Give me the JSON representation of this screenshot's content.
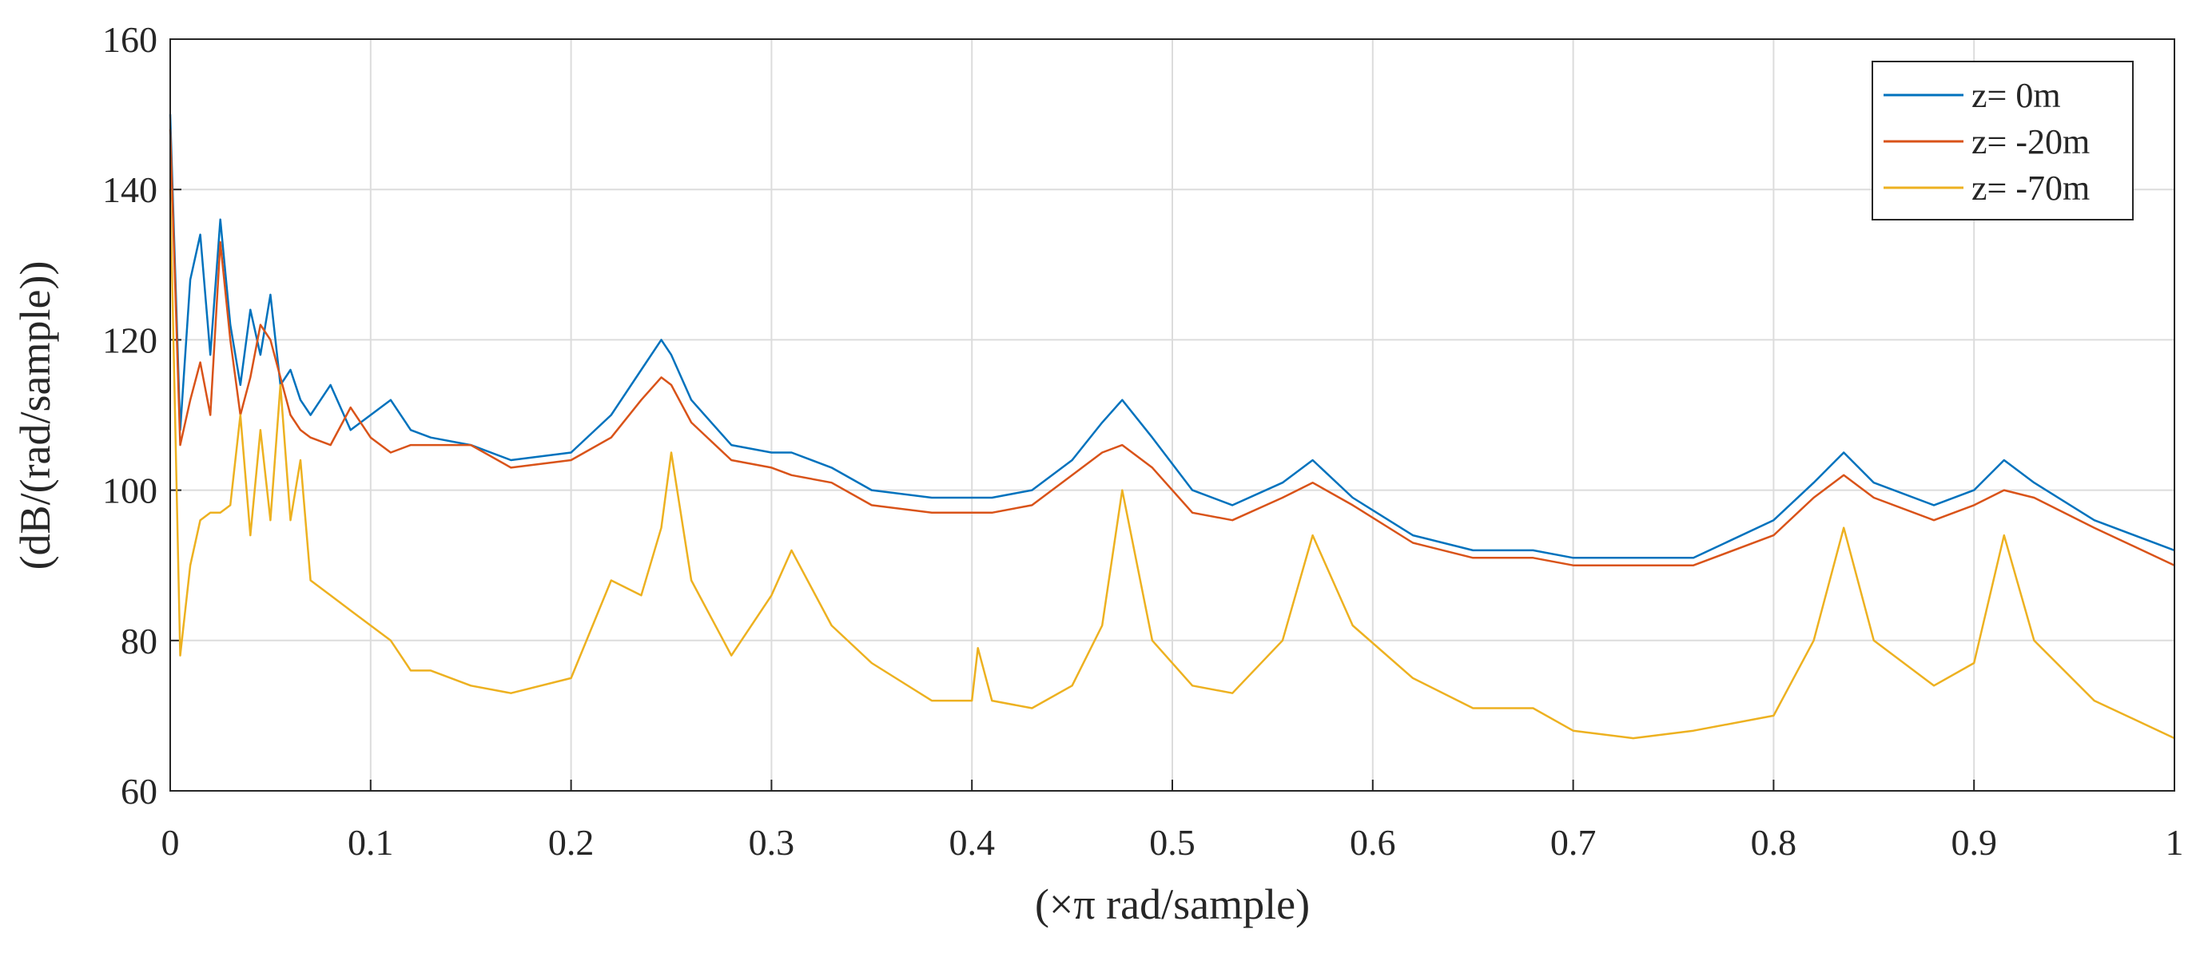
{
  "chart_data": {
    "type": "line",
    "xlabel": "(×π rad/sample)",
    "ylabel": "(dB/(rad/sample))",
    "x": [
      0,
      0.005,
      0.01,
      0.015,
      0.02,
      0.025,
      0.03,
      0.035,
      0.04,
      0.045,
      0.05,
      0.055,
      0.06,
      0.065,
      0.07,
      0.08,
      0.09,
      0.1,
      0.11,
      0.12,
      0.13,
      0.15,
      0.17,
      0.2,
      0.22,
      0.235,
      0.245,
      0.25,
      0.26,
      0.28,
      0.3,
      0.31,
      0.33,
      0.35,
      0.38,
      0.4,
      0.403,
      0.41,
      0.43,
      0.45,
      0.465,
      0.475,
      0.49,
      0.51,
      0.53,
      0.555,
      0.57,
      0.59,
      0.62,
      0.65,
      0.68,
      0.7,
      0.73,
      0.76,
      0.8,
      0.82,
      0.835,
      0.85,
      0.88,
      0.9,
      0.915,
      0.93,
      0.96,
      1.0
    ],
    "series": [
      {
        "name": "z= 0m",
        "color": "#0072bd",
        "values": [
          150,
          108,
          128,
          134,
          118,
          136,
          122,
          114,
          124,
          118,
          126,
          114,
          116,
          112,
          110,
          114,
          108,
          110,
          112,
          108,
          107,
          106,
          104,
          105,
          110,
          116,
          120,
          118,
          112,
          106,
          105,
          105,
          103,
          100,
          99,
          99,
          99,
          99,
          100,
          104,
          109,
          112,
          107,
          100,
          98,
          101,
          104,
          99,
          94,
          92,
          92,
          91,
          91,
          91,
          96,
          101,
          105,
          101,
          98,
          100,
          104,
          101,
          96,
          92
        ]
      },
      {
        "name": "z= -20m",
        "color": "#d95319",
        "values": [
          148,
          106,
          112,
          117,
          110,
          133,
          120,
          110,
          115,
          122,
          120,
          115,
          110,
          108,
          107,
          106,
          111,
          107,
          105,
          106,
          106,
          106,
          103,
          104,
          107,
          112,
          115,
          114,
          109,
          104,
          103,
          102,
          101,
          98,
          97,
          97,
          97,
          97,
          98,
          102,
          105,
          106,
          103,
          97,
          96,
          99,
          101,
          98,
          93,
          91,
          91,
          90,
          90,
          90,
          94,
          99,
          102,
          99,
          96,
          98,
          100,
          99,
          95,
          90
        ]
      },
      {
        "name": "z= -70m",
        "color": "#edb120",
        "values": [
          140,
          78,
          90,
          96,
          97,
          97,
          98,
          110,
          94,
          108,
          96,
          114,
          96,
          104,
          88,
          86,
          84,
          82,
          80,
          76,
          76,
          74,
          73,
          75,
          88,
          86,
          95,
          105,
          88,
          78,
          86,
          92,
          82,
          77,
          72,
          72,
          79,
          72,
          71,
          74,
          82,
          100,
          80,
          74,
          73,
          80,
          94,
          82,
          75,
          71,
          71,
          68,
          67,
          68,
          70,
          80,
          95,
          80,
          74,
          77,
          94,
          80,
          72,
          67
        ]
      }
    ],
    "xlim": [
      0,
      1
    ],
    "xticks": [
      0,
      0.1,
      0.2,
      0.3,
      0.4,
      0.5,
      0.6,
      0.7,
      0.8,
      0.9,
      1
    ],
    "ylim": [
      60,
      160
    ],
    "yticks": [
      60,
      80,
      100,
      120,
      140,
      160
    ],
    "grid": true,
    "legend": "upper right"
  }
}
